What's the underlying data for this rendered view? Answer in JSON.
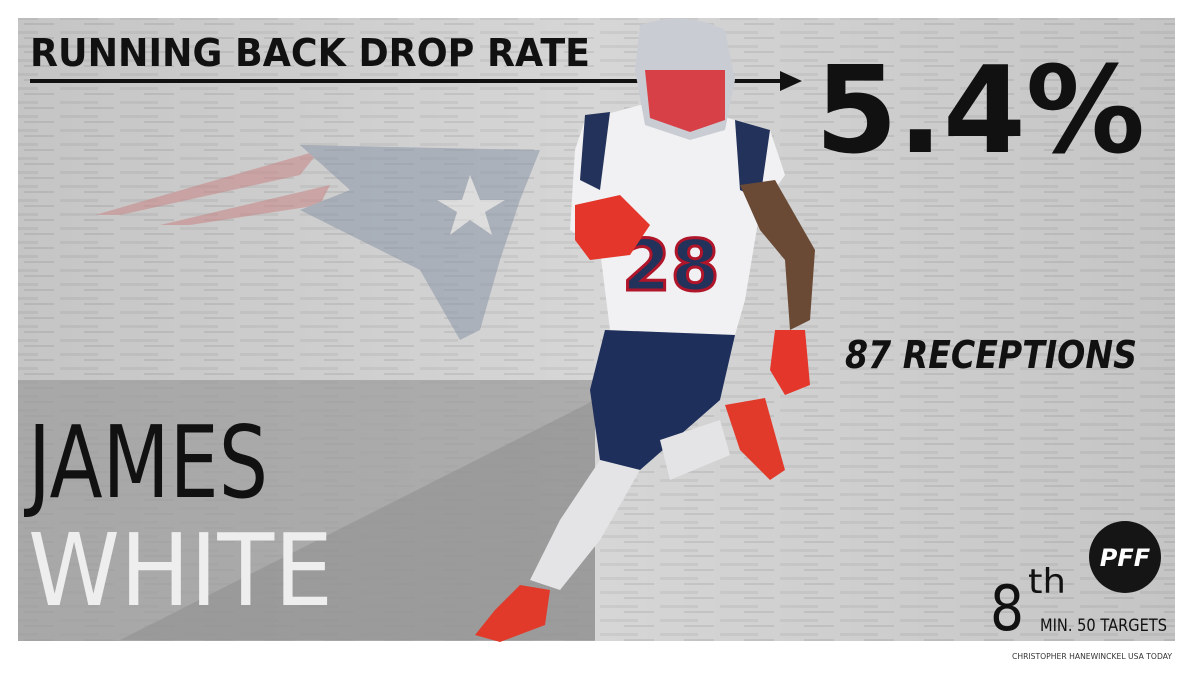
{
  "headline": {
    "title": "RUNNING BACK DROP RATE",
    "stat": "5.4%"
  },
  "player": {
    "first_name": "JAMES",
    "last_name": "WHITE"
  },
  "receptions": "87 RECEPTIONS",
  "rank": {
    "number": "8",
    "suffix": "th",
    "note": "MIN. 50 TARGETS"
  },
  "logo": "PFF",
  "credit": "CHRISTOPHER HANEWINCKEL USA TODAY"
}
